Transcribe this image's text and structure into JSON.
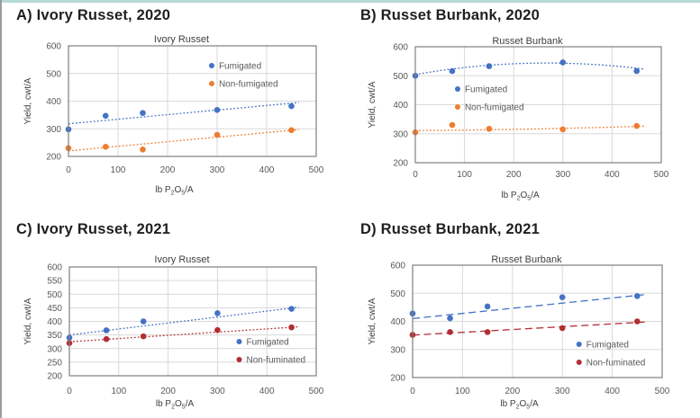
{
  "page": {
    "accent_top_color": "#b5d9d5",
    "left_edge_color": "#9c9c9c"
  },
  "panels": [
    {
      "heading": "A) Ivory Russet, 2020"
    },
    {
      "heading": "B) Russet Burbank, 2020"
    },
    {
      "heading": "C) Ivory Russet, 2021"
    },
    {
      "heading": "D) Russet Burbank, 2021"
    }
  ],
  "chart_data": [
    {
      "type": "scatter",
      "title": "Ivory Russet",
      "ylabel": "Yield, cwt/A",
      "xlabel": "lb P2O5/A",
      "xlabel_parts": [
        {
          "t": "lb P",
          "sub": false
        },
        {
          "t": "2",
          "sub": true
        },
        {
          "t": "O",
          "sub": false
        },
        {
          "t": "5",
          "sub": true
        },
        {
          "t": "/A",
          "sub": false
        }
      ],
      "xlim": [
        0,
        500
      ],
      "ylim": [
        200,
        600
      ],
      "xticks": [
        0,
        100,
        200,
        300,
        400,
        500
      ],
      "yticks": [
        200,
        300,
        400,
        500,
        600
      ],
      "grid": true,
      "legend_position": "inside-upper-right",
      "x": [
        0,
        75,
        150,
        300,
        450
      ],
      "series": [
        {
          "name": "Fumigated",
          "color": "#4472C4",
          "values": [
            298,
            347,
            357,
            368,
            382
          ],
          "trend": {
            "style": "dotted",
            "points": [
              [
                0,
                318
              ],
              [
                465,
                395
              ]
            ]
          }
        },
        {
          "name": "Non-fumigated",
          "color": "#ED7D31",
          "values": [
            230,
            235,
            225,
            278,
            295
          ],
          "trend": {
            "style": "dotted",
            "points": [
              [
                0,
                220
              ],
              [
                465,
                297
              ]
            ]
          }
        }
      ],
      "legend": {
        "fx": 0.578,
        "fy": 0.179
      }
    },
    {
      "type": "scatter",
      "title": "Russet Burbank",
      "ylabel": "Yield, cwt/A",
      "xlabel": "lb P2O5/A",
      "xlabel_parts": [
        {
          "t": "lb P",
          "sub": false
        },
        {
          "t": "2",
          "sub": true
        },
        {
          "t": "O",
          "sub": false
        },
        {
          "t": "5",
          "sub": true
        },
        {
          "t": "/A",
          "sub": false
        }
      ],
      "xlim": [
        0,
        500
      ],
      "ylim": [
        200,
        600
      ],
      "xticks": [
        0,
        100,
        200,
        300,
        400,
        500
      ],
      "yticks": [
        200,
        300,
        400,
        500,
        600
      ],
      "grid": true,
      "legend_position": "inside-middle-left",
      "x": [
        0,
        75,
        150,
        300,
        450
      ],
      "series": [
        {
          "name": "Fumigated",
          "color": "#4472C4",
          "values": [
            500,
            516,
            533,
            546,
            516
          ],
          "trend": {
            "style": "dotted",
            "points": [
              [
                0,
                504
              ],
              [
                230,
                543
              ],
              [
                465,
                523
              ]
            ]
          }
        },
        {
          "name": "Non-fumigated",
          "color": "#ED7D31",
          "values": [
            305,
            330,
            317,
            315,
            327
          ],
          "trend": {
            "style": "dotted",
            "points": [
              [
                0,
                311
              ],
              [
                230,
                316
              ],
              [
                465,
                326
              ]
            ]
          }
        }
      ],
      "legend": {
        "fx": 0.172,
        "fy": 0.364
      }
    },
    {
      "type": "scatter",
      "title": "Ivory Russet",
      "ylabel": "Yield, cwt/A",
      "xlabel": "lb P2O5/A",
      "xlabel_parts": [
        {
          "t": "lb P",
          "sub": false
        },
        {
          "t": "2",
          "sub": true
        },
        {
          "t": "O",
          "sub": false
        },
        {
          "t": "5",
          "sub": true
        },
        {
          "t": "/A",
          "sub": false
        }
      ],
      "xlim": [
        0,
        500
      ],
      "ylim": [
        200,
        600
      ],
      "xticks": [
        0,
        100,
        200,
        300,
        400,
        500
      ],
      "yticks": [
        200,
        250,
        300,
        350,
        400,
        450,
        500,
        550,
        600
      ],
      "grid": true,
      "legend_position": "inside-lower-right",
      "x": [
        0,
        75,
        150,
        300,
        450
      ],
      "series": [
        {
          "name": "Fumigated",
          "color": "#4472C4",
          "values": [
            340,
            367,
            400,
            430,
            446
          ],
          "trend": {
            "style": "dotted",
            "points": [
              [
                0,
                350
              ],
              [
                465,
                452
              ]
            ]
          }
        },
        {
          "name": "Non-fuminated",
          "color": "#B22E33",
          "values": [
            320,
            335,
            345,
            368,
            378
          ],
          "trend": {
            "style": "dotted",
            "points": [
              [
                0,
                325
              ],
              [
                465,
                380
              ]
            ]
          }
        }
      ],
      "legend": {
        "fx": 0.688,
        "fy": 0.686
      }
    },
    {
      "type": "scatter",
      "title": "Russet Burbank",
      "ylabel": "Yield, cwt/A",
      "xlabel": "lb P2O5/A",
      "xlabel_parts": [
        {
          "t": "lb P",
          "sub": false
        },
        {
          "t": "2",
          "sub": true
        },
        {
          "t": "O",
          "sub": false
        },
        {
          "t": "5",
          "sub": true
        },
        {
          "t": "/A",
          "sub": false
        }
      ],
      "xlim": [
        0,
        500
      ],
      "ylim": [
        200,
        600
      ],
      "xticks": [
        0,
        100,
        200,
        300,
        400,
        500
      ],
      "yticks": [
        200,
        300,
        400,
        500,
        600
      ],
      "grid": true,
      "legend_position": "inside-lower-right",
      "x": [
        0,
        75,
        150,
        300,
        450
      ],
      "series": [
        {
          "name": "Fumigated",
          "color": "#4472C4",
          "values": [
            428,
            411,
            453,
            486,
            490
          ],
          "trend": {
            "style": "dashed",
            "points": [
              [
                0,
                410
              ],
              [
                470,
                496
              ]
            ]
          }
        },
        {
          "name": "Non-fuminated",
          "color": "#B22E33",
          "values": [
            352,
            362,
            362,
            376,
            400
          ],
          "trend": {
            "style": "dashed",
            "points": [
              [
                0,
                351
              ],
              [
                470,
                398
              ]
            ]
          }
        }
      ],
      "legend": {
        "fx": 0.667,
        "fy": 0.704
      }
    }
  ]
}
